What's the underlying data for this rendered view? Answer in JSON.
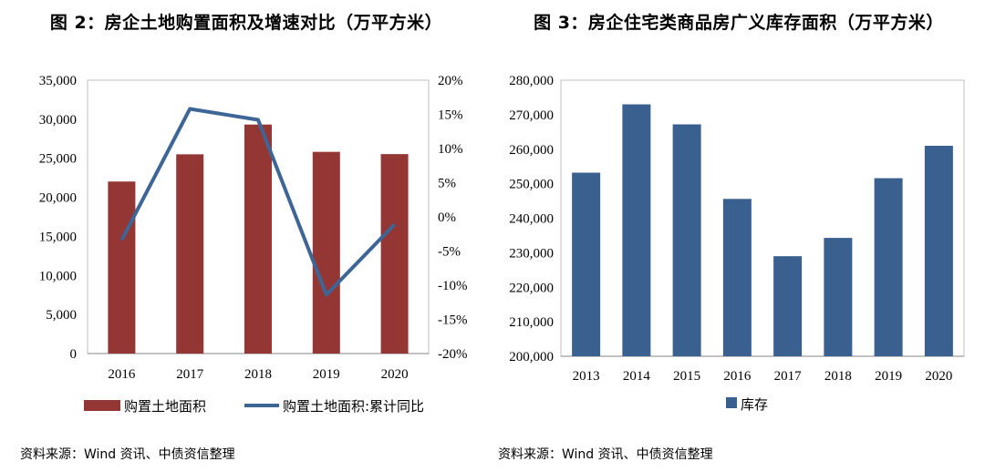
{
  "chart_data": [
    {
      "type": "bar",
      "title": "图 2：房企土地购置面积及增速对比（万平方米）",
      "categories": [
        "2016",
        "2017",
        "2018",
        "2019",
        "2020"
      ],
      "series": [
        {
          "name": "购置土地面积",
          "type": "bar",
          "axis": "left",
          "color": "#943634",
          "values": [
            22025,
            25508,
            29320,
            25822,
            25536
          ]
        },
        {
          "name": "购置土地面积:累计同比",
          "type": "line",
          "axis": "right",
          "color": "#3d6595",
          "values": [
            -3.4,
            15.8,
            14.2,
            -11.4,
            -1.1
          ]
        }
      ],
      "ylim_left": [
        0,
        35000
      ],
      "yticks_left": [
        "0",
        "5,000",
        "10,000",
        "15,000",
        "20,000",
        "25,000",
        "30,000",
        "35,000"
      ],
      "ylim_right": [
        -20,
        20
      ],
      "yticks_right": [
        "-20%",
        "-15%",
        "-10%",
        "-5%",
        "0%",
        "5%",
        "10%",
        "15%",
        "20%"
      ],
      "grid": false,
      "legend_position": "bottom",
      "source": "资料来源：Wind 资讯、中债资信整理"
    },
    {
      "type": "bar",
      "title": "图 3：房企住宅类商品房广义库存面积（万平方米）",
      "categories": [
        "2013",
        "2014",
        "2015",
        "2016",
        "2017",
        "2018",
        "2019",
        "2020"
      ],
      "series": [
        {
          "name": "库存",
          "color": "#3a6090",
          "values": [
            253200,
            273000,
            267200,
            245600,
            229000,
            234300,
            251600,
            261000
          ]
        }
      ],
      "ylim": [
        200000,
        280000
      ],
      "yticks": [
        "200,000",
        "210,000",
        "220,000",
        "230,000",
        "240,000",
        "250,000",
        "260,000",
        "270,000",
        "280,000"
      ],
      "grid": false,
      "legend_position": "bottom",
      "source": "资料来源：Wind 资讯、中债资信整理"
    }
  ]
}
